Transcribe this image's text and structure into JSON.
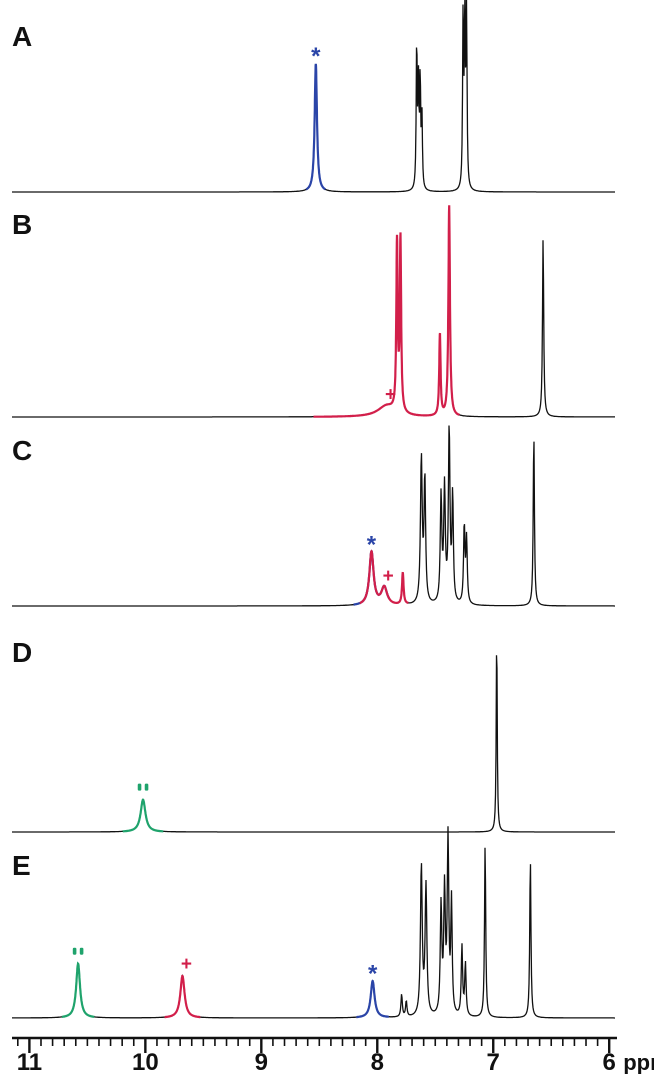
{
  "chart_data": {
    "type": "line",
    "title": "",
    "xlabel": "ppm",
    "ylabel": "",
    "x_range": [
      11.15,
      5.95
    ],
    "x_reversed": true,
    "x_ticks": [
      "11",
      "10",
      "9",
      "8",
      "7",
      "6"
    ],
    "x_tick_values": [
      11,
      10,
      9,
      8,
      7,
      6
    ],
    "minor_tick_step": 0.1,
    "grid": false,
    "legend": "none",
    "colors": {
      "baseline": "#111111",
      "star": "#2b45a8",
      "plus": "#d21f4a",
      "dquote": "#1fa36c"
    },
    "spectra": [
      {
        "label": "A",
        "peaks": [
          {
            "ppm": 8.53,
            "height": 0.72,
            "width": 0.012,
            "marker": "star"
          },
          {
            "ppm": 7.66,
            "height": 0.84,
            "width": 0.005
          },
          {
            "ppm": 7.645,
            "height": 0.56,
            "width": 0.005
          },
          {
            "ppm": 7.63,
            "height": 0.62,
            "width": 0.005
          },
          {
            "ppm": 7.615,
            "height": 0.4,
            "width": 0.005
          },
          {
            "ppm": 7.26,
            "height": 0.96,
            "width": 0.005
          },
          {
            "ppm": 7.245,
            "height": 1.0,
            "width": 0.005
          },
          {
            "ppm": 7.23,
            "height": 0.96,
            "width": 0.005
          }
        ]
      },
      {
        "label": "B",
        "peaks": [
          {
            "ppm": 7.92,
            "height": 0.05,
            "width": 0.09,
            "marker": "plus"
          },
          {
            "ppm": 7.83,
            "height": 0.78,
            "width": 0.007
          },
          {
            "ppm": 7.8,
            "height": 0.8,
            "width": 0.007
          },
          {
            "ppm": 7.46,
            "height": 0.38,
            "width": 0.007
          },
          {
            "ppm": 7.38,
            "height": 0.98,
            "width": 0.008
          },
          {
            "ppm": 6.57,
            "height": 0.84,
            "width": 0.006
          }
        ]
      },
      {
        "label": "C",
        "peaks": [
          {
            "ppm": 8.05,
            "height": 0.3,
            "width": 0.022,
            "marker": "star"
          },
          {
            "ppm": 7.94,
            "height": 0.1,
            "width": 0.03,
            "marker": "plus"
          },
          {
            "ppm": 7.78,
            "height": 0.18,
            "width": 0.008
          },
          {
            "ppm": 7.62,
            "height": 0.82,
            "width": 0.009
          },
          {
            "ppm": 7.59,
            "height": 0.7,
            "width": 0.008
          },
          {
            "ppm": 7.45,
            "height": 0.6,
            "width": 0.008
          },
          {
            "ppm": 7.42,
            "height": 0.64,
            "width": 0.008
          },
          {
            "ppm": 7.38,
            "height": 0.98,
            "width": 0.008
          },
          {
            "ppm": 7.35,
            "height": 0.6,
            "width": 0.007
          },
          {
            "ppm": 7.25,
            "height": 0.44,
            "width": 0.007
          },
          {
            "ppm": 7.23,
            "height": 0.36,
            "width": 0.007
          },
          {
            "ppm": 6.65,
            "height": 0.98,
            "width": 0.006
          }
        ]
      },
      {
        "label": "D",
        "peaks": [
          {
            "ppm": 10.02,
            "height": 0.16,
            "width": 0.025,
            "marker": "dquote"
          },
          {
            "ppm": 6.97,
            "height": 1.0,
            "width": 0.005
          }
        ]
      },
      {
        "label": "E",
        "peaks": [
          {
            "ppm": 10.58,
            "height": 0.31,
            "width": 0.02,
            "marker": "dquote"
          },
          {
            "ppm": 9.68,
            "height": 0.24,
            "width": 0.022,
            "marker": "plus"
          },
          {
            "ppm": 8.04,
            "height": 0.21,
            "width": 0.02,
            "marker": "star"
          },
          {
            "ppm": 7.79,
            "height": 0.13,
            "width": 0.007
          },
          {
            "ppm": 7.75,
            "height": 0.09,
            "width": 0.007
          },
          {
            "ppm": 7.62,
            "height": 0.86,
            "width": 0.009
          },
          {
            "ppm": 7.58,
            "height": 0.74,
            "width": 0.009
          },
          {
            "ppm": 7.45,
            "height": 0.62,
            "width": 0.008
          },
          {
            "ppm": 7.42,
            "height": 0.7,
            "width": 0.008
          },
          {
            "ppm": 7.39,
            "height": 1.0,
            "width": 0.008
          },
          {
            "ppm": 7.36,
            "height": 0.64,
            "width": 0.007
          },
          {
            "ppm": 7.27,
            "height": 0.4,
            "width": 0.007
          },
          {
            "ppm": 7.24,
            "height": 0.3,
            "width": 0.007
          },
          {
            "ppm": 7.07,
            "height": 1.0,
            "width": 0.006
          },
          {
            "ppm": 6.68,
            "height": 0.92,
            "width": 0.006
          }
        ]
      }
    ]
  }
}
